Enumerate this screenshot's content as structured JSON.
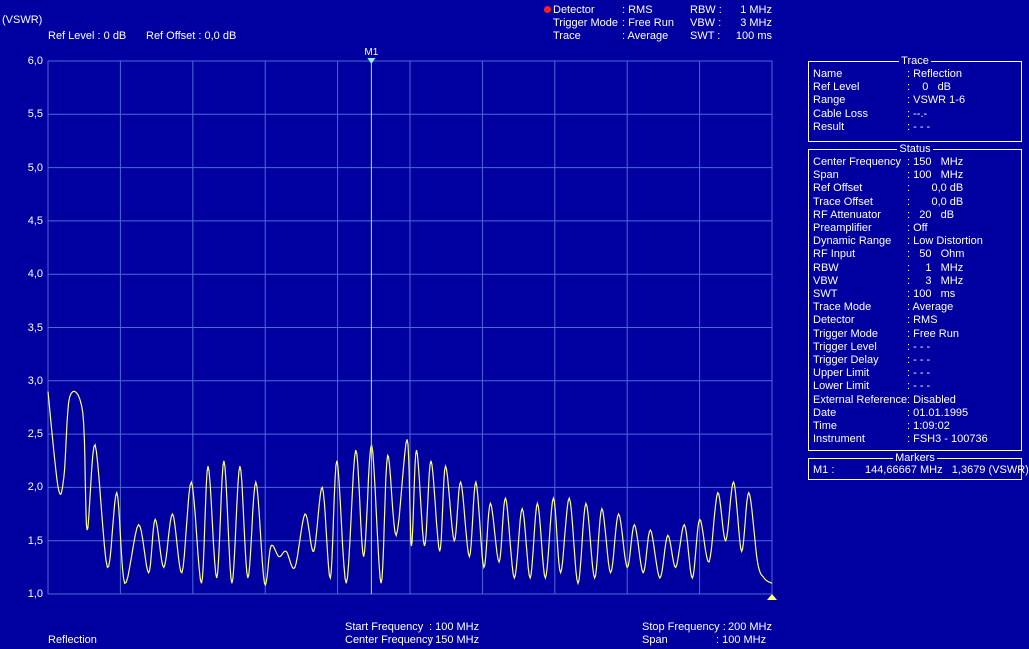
{
  "header": {
    "unit": "(VSWR)",
    "ref_level": "Ref Level : 0 dB",
    "ref_offset": "Ref Offset : 0,0 dB",
    "detector_label": "Detector",
    "detector_value": ": RMS",
    "trigger_label": "Trigger Mode",
    "trigger_value": ": Free Run",
    "trace_label": "Trace",
    "trace_value": ": Average",
    "rbw_label": "RBW :",
    "rbw_value": "1 MHz",
    "vbw_label": "VBW :",
    "vbw_value": "3 MHz",
    "swt_label": "SWT :",
    "swt_value": "100 ms",
    "detector_dot_color": "#ff2020"
  },
  "plot": {
    "marker_label": "M1",
    "trace_color": "#ffff80",
    "grid_color": "#4a6ad8",
    "y_labels": [
      "6,0",
      "5,5",
      "5,0",
      "4,5",
      "4,0",
      "3,5",
      "3,0",
      "2,5",
      "2,0",
      "1,5",
      "1,0"
    ]
  },
  "footer": {
    "trace_name": "Reflection",
    "start_label": "Start Frequency",
    "start_value": ": 100 MHz",
    "center_label": "Center Frequency",
    "center_value": ": 150 MHz",
    "stop_label": "Stop Frequency :",
    "stop_value": "200 MHz",
    "span_label": "Span",
    "span_value": ": 100 MHz"
  },
  "trace_panel": {
    "title": "Trace",
    "rows": [
      {
        "k": "Name",
        "v": ": Reflection"
      },
      {
        "k": "Ref Level",
        "v": ":    0   dB"
      },
      {
        "k": "Range",
        "v": ": VSWR 1-6"
      },
      {
        "k": "Cable Loss",
        "v": ": --.-"
      },
      {
        "k": "Result",
        "v": ": - - -"
      }
    ]
  },
  "status_panel": {
    "title": "Status",
    "rows": [
      {
        "k": "Center Frequency",
        "v": ": 150   MHz"
      },
      {
        "k": "Span",
        "v": ": 100   MHz"
      },
      {
        "k": "Ref Offset",
        "v": ":       0,0 dB"
      },
      {
        "k": "Trace Offset",
        "v": ":       0,0 dB"
      },
      {
        "k": "RF Attenuator",
        "v": ":   20   dB"
      },
      {
        "k": "Preamplifier",
        "v": ": Off"
      },
      {
        "k": "Dynamic Range",
        "v": ": Low Distortion"
      },
      {
        "k": "RF Input",
        "v": ":   50   Ohm"
      },
      {
        "k": "RBW",
        "v": ":     1   MHz"
      },
      {
        "k": "VBW",
        "v": ":     3   MHz"
      },
      {
        "k": "SWT",
        "v": ": 100   ms"
      },
      {
        "k": "Trace Mode",
        "v": ": Average"
      },
      {
        "k": "Detector",
        "v": ": RMS"
      },
      {
        "k": "Trigger Mode",
        "v": ": Free Run"
      },
      {
        "k": "Trigger Level",
        "v": ": - - -"
      },
      {
        "k": "Trigger Delay",
        "v": ": - - -"
      },
      {
        "k": "Upper Limit",
        "v": ": - - -"
      },
      {
        "k": "Lower Limit",
        "v": ": - - -"
      },
      {
        "k": "External Reference",
        "v": ": Disabled"
      },
      {
        "k": "Date",
        "v": ": 01.01.1995"
      },
      {
        "k": "Time",
        "v": ": 1:09:02"
      },
      {
        "k": "Instrument",
        "v": ": FSH3 - 100736"
      }
    ]
  },
  "markers_panel": {
    "title": "Markers",
    "m1": "M1 :          144,66667 MHz   1,3679 (VSWR)"
  },
  "chart_data": {
    "type": "line",
    "x_range": [
      100,
      200
    ],
    "ylim": [
      1.0,
      6.0
    ],
    "grid": true,
    "marker": {
      "name": "M1",
      "x": 144.66667,
      "y": 1.3679
    },
    "series": [
      {
        "x": [
          100,
          101.4,
          102.2,
          103.0,
          104.8,
          105.4,
          106.5,
          108.2,
          109.5,
          110.6,
          112.5,
          113.9,
          114.8,
          116.0,
          117.2,
          118.5,
          119.8,
          121.2,
          122.1,
          123.3,
          124.3,
          125.4,
          126.5,
          127.6,
          128.7,
          129.9,
          130.8,
          131.9,
          132.9,
          134.1,
          135.5,
          136.7,
          137.9,
          139.0,
          139.9,
          141.2,
          142.5,
          143.6,
          144.7,
          146.0,
          146.9,
          148.1,
          149.6,
          150.2,
          150.9,
          152.0,
          152.9,
          154.1,
          154.9,
          156.1,
          157.0,
          158.2,
          159.1,
          160.2,
          161.1,
          162.3,
          163.2,
          164.4,
          165.5,
          166.6,
          167.6,
          168.7,
          169.8,
          170.8,
          172.0,
          173.2,
          174.3,
          175.5,
          176.5,
          177.7,
          178.8,
          180.0,
          181.0,
          182.2,
          183.2,
          184.5,
          185.6,
          186.7,
          187.9,
          189.0,
          190.0,
          191.3,
          192.5,
          193.6,
          194.7,
          195.8,
          196.8,
          198.0,
          198.9,
          200
        ],
        "values": [
          2.9,
          2.0,
          2.1,
          2.85,
          2.7,
          1.6,
          2.4,
          1.25,
          1.95,
          1.1,
          1.65,
          1.2,
          1.7,
          1.25,
          1.75,
          1.2,
          2.05,
          1.1,
          2.2,
          1.15,
          2.25,
          1.1,
          2.2,
          1.15,
          2.05,
          1.1,
          1.45,
          1.35,
          1.4,
          1.25,
          1.75,
          1.4,
          2.0,
          1.15,
          2.25,
          1.1,
          2.35,
          1.35,
          2.4,
          1.1,
          2.3,
          1.55,
          2.45,
          1.45,
          2.35,
          1.45,
          2.25,
          1.4,
          2.2,
          1.5,
          2.05,
          1.35,
          2.05,
          1.25,
          1.85,
          1.3,
          1.9,
          1.15,
          1.8,
          1.15,
          1.85,
          1.15,
          1.9,
          1.2,
          1.9,
          1.1,
          1.85,
          1.15,
          1.8,
          1.2,
          1.75,
          1.25,
          1.65,
          1.2,
          1.6,
          1.15,
          1.55,
          1.25,
          1.65,
          1.15,
          1.7,
          1.3,
          1.95,
          1.5,
          2.05,
          1.4,
          1.95,
          1.3,
          1.15,
          1.1
        ]
      }
    ]
  }
}
